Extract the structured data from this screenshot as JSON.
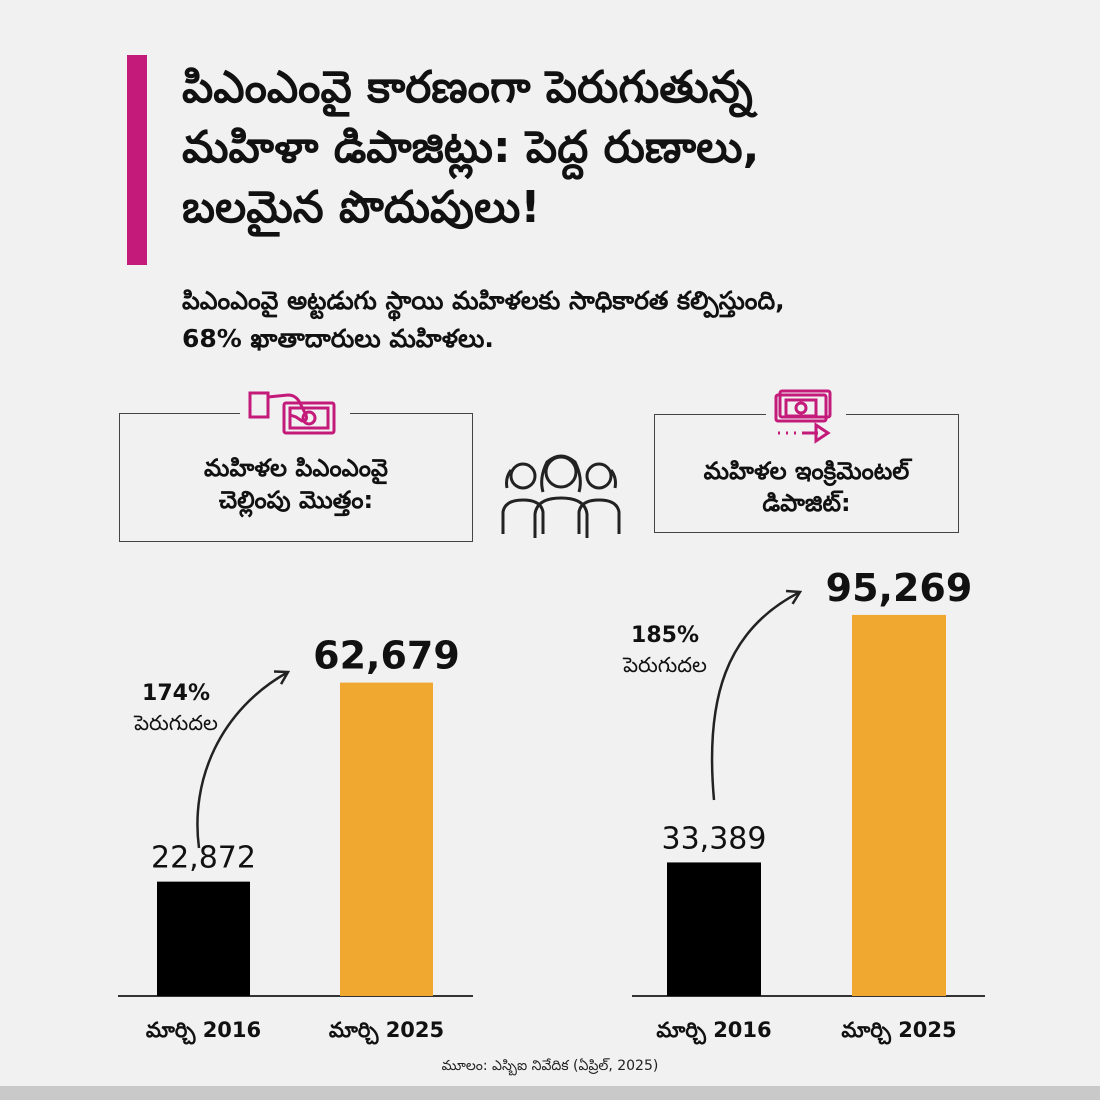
{
  "header": {
    "title_line1": "పిఎంఎంవై కారణంగా పెరుగుతున్న",
    "title_line2": "మహిళా డిపాజిట్లు: పెద్ద రుణాలు,",
    "title_line3": "బలమైన పొదుపులు!",
    "subtitle_line1": "పిఎంఎంవై అట్టడుగు స్థాయి మహిళలకు సాధికారత కల్పిస్తుంది,",
    "subtitle_line2": "68% ఖాతాదారులు మహిళలు."
  },
  "cards": {
    "left": {
      "label_line1": "మహిళల పిఎంఎంవై",
      "label_line2": "చెల్లింపు మొత్తం:",
      "icon": "hand-cash-icon"
    },
    "middle": {
      "icon": "women-group-icon"
    },
    "right": {
      "label_line1": "మహిళల ఇంక్రిమెంటల్",
      "label_line2": "డిపాజిట్:",
      "icon": "money-transfer-icon"
    }
  },
  "colors": {
    "accent": "#c41a7a",
    "bar_2016": "#000000",
    "bar_2025": "#f0a830",
    "icon": "#c41a7a"
  },
  "chart_data": [
    {
      "type": "bar",
      "categories": [
        "మార్చి 2016",
        "మార్చి 2025"
      ],
      "values": [
        22872,
        62679
      ],
      "value_labels": [
        "22,872",
        "62,679"
      ],
      "growth_pct": "174%",
      "growth_label": "పెరుగుదల",
      "ylim": [
        0,
        100000
      ]
    },
    {
      "type": "bar",
      "categories": [
        "మార్చి 2016",
        "మార్చి 2025"
      ],
      "values": [
        33389,
        95269
      ],
      "value_labels": [
        "33,389",
        "95,269"
      ],
      "growth_pct": "185%",
      "growth_label": "పెరుగుదల",
      "ylim": [
        0,
        100000
      ]
    }
  ],
  "source": "మూలం: ఎస్బిఐ నివేదిక (ఏప్రిల్, 2025)"
}
